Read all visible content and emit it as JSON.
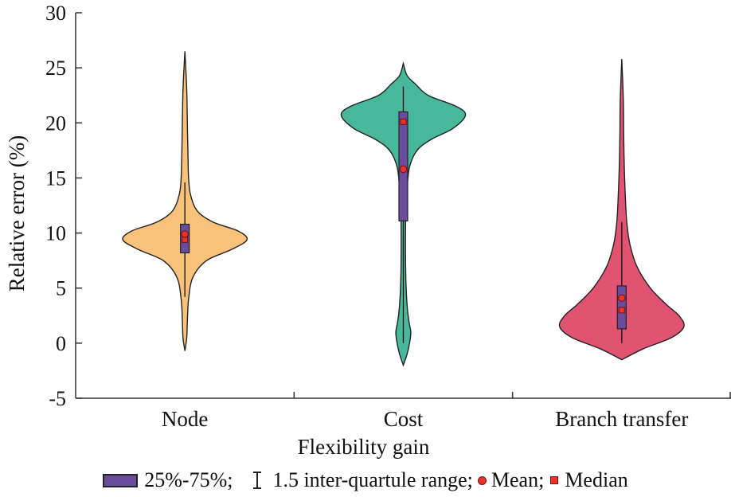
{
  "chart_data": {
    "type": "violin",
    "xlabel": "Flexibility gain",
    "ylabel": "Relative error (%)",
    "ylim": [
      -5,
      30
    ],
    "yticks": [
      -5,
      0,
      5,
      10,
      15,
      20,
      25,
      30
    ],
    "categories": [
      "Node",
      "Cost",
      "Branch transfer"
    ],
    "series": [
      {
        "name": "Node",
        "color": "#f9c27a",
        "min": -0.7,
        "max": 26.5,
        "q1": 8.2,
        "q3": 10.8,
        "whisker_low": 4.2,
        "whisker_high": 14.6,
        "mean": 9.9,
        "median": 9.4,
        "density": [
          [
            -0.7,
            0.0
          ],
          [
            0.5,
            0.03
          ],
          [
            2,
            0.04
          ],
          [
            4,
            0.06
          ],
          [
            6,
            0.13
          ],
          [
            7.5,
            0.35
          ],
          [
            8.5,
            0.75
          ],
          [
            9.4,
            1.0
          ],
          [
            10.2,
            0.85
          ],
          [
            11,
            0.45
          ],
          [
            12,
            0.2
          ],
          [
            13.5,
            0.09
          ],
          [
            15,
            0.06
          ],
          [
            17,
            0.05
          ],
          [
            20,
            0.04
          ],
          [
            23,
            0.03
          ],
          [
            26.5,
            0.0
          ]
        ]
      },
      {
        "name": "Cost",
        "color": "#48b89c",
        "min": -2,
        "max": 25.4,
        "q1": 11.1,
        "q3": 21.0,
        "whisker_low": 0,
        "whisker_high": 23.3,
        "mean": 15.8,
        "median": 20.1,
        "density": [
          [
            -2,
            0.0
          ],
          [
            -1,
            0.06
          ],
          [
            0,
            0.1
          ],
          [
            1,
            0.12
          ],
          [
            2,
            0.09
          ],
          [
            3.5,
            0.06
          ],
          [
            6,
            0.04
          ],
          [
            9,
            0.035
          ],
          [
            12,
            0.04
          ],
          [
            14,
            0.06
          ],
          [
            16,
            0.1
          ],
          [
            17.5,
            0.22
          ],
          [
            18.5,
            0.45
          ],
          [
            19.5,
            0.8
          ],
          [
            20.7,
            1.0
          ],
          [
            21.5,
            0.85
          ],
          [
            22.5,
            0.4
          ],
          [
            23.5,
            0.2
          ],
          [
            24.3,
            0.06
          ],
          [
            25.4,
            0.0
          ]
        ]
      },
      {
        "name": "Branch transfer",
        "color": "#e05472",
        "min": -1.5,
        "max": 25.8,
        "q1": 1.3,
        "q3": 5.2,
        "whisker_low": 0,
        "whisker_high": 11.0,
        "mean": 4.1,
        "median": 3.0,
        "density": [
          [
            -1.5,
            0.0
          ],
          [
            -0.5,
            0.35
          ],
          [
            0.5,
            0.8
          ],
          [
            1.5,
            1.0
          ],
          [
            2.5,
            0.92
          ],
          [
            3.5,
            0.72
          ],
          [
            5,
            0.46
          ],
          [
            7,
            0.24
          ],
          [
            9,
            0.13
          ],
          [
            11,
            0.08
          ],
          [
            13,
            0.06
          ],
          [
            16,
            0.04
          ],
          [
            19,
            0.03
          ],
          [
            22,
            0.025
          ],
          [
            25.8,
            0.0
          ]
        ]
      }
    ],
    "legend": {
      "box_label": "25%-75%;",
      "range_label": "1.5 inter-quartule range;",
      "mean_label": "Mean;",
      "median_label": "Median",
      "box_color": "#6a4c9c",
      "marker_color": "#e8322a"
    }
  }
}
